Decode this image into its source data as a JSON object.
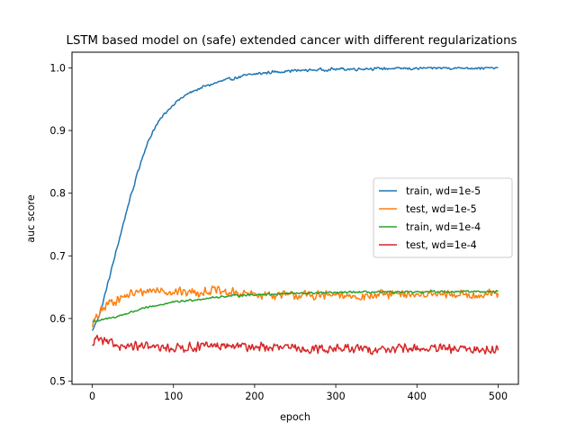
{
  "chart_data": {
    "type": "line",
    "title": "LSTM based model on (safe) extended cancer with different regularizations",
    "xlabel": "epoch",
    "ylabel": "auc score",
    "xlim": [
      -25,
      525
    ],
    "ylim": [
      0.495,
      1.025
    ],
    "xticks": [
      0,
      100,
      200,
      300,
      400,
      500
    ],
    "yticks": [
      0.5,
      0.6,
      0.7,
      0.8,
      0.9,
      1.0
    ],
    "grid": false,
    "legend_position": "center-right",
    "series": [
      {
        "name": "train, wd=1e-5",
        "color": "#1f77b4",
        "x": [
          0,
          5,
          10,
          15,
          20,
          25,
          30,
          35,
          40,
          45,
          50,
          55,
          60,
          65,
          70,
          75,
          80,
          85,
          90,
          95,
          100,
          110,
          120,
          130,
          140,
          150,
          160,
          170,
          180,
          190,
          200,
          220,
          240,
          260,
          280,
          300,
          320,
          340,
          360,
          380,
          400,
          420,
          440,
          460,
          480,
          500
        ],
        "y": [
          0.58,
          0.595,
          0.61,
          0.635,
          0.66,
          0.685,
          0.71,
          0.735,
          0.76,
          0.785,
          0.805,
          0.83,
          0.85,
          0.87,
          0.885,
          0.9,
          0.91,
          0.92,
          0.928,
          0.935,
          0.942,
          0.952,
          0.96,
          0.966,
          0.971,
          0.975,
          0.979,
          0.982,
          0.985,
          0.988,
          0.99,
          0.993,
          0.995,
          0.996,
          0.997,
          0.998,
          0.998,
          0.999,
          0.999,
          0.999,
          0.999,
          1.0,
          1.0,
          1.0,
          1.0,
          1.0
        ],
        "noise": 0.003
      },
      {
        "name": "test, wd=1e-5",
        "color": "#ff7f0e",
        "x": [
          0,
          10,
          20,
          30,
          40,
          50,
          60,
          70,
          80,
          100,
          120,
          140,
          150,
          160,
          180,
          200,
          220,
          240,
          260,
          280,
          300,
          320,
          340,
          360,
          380,
          400,
          420,
          440,
          460,
          480,
          500
        ],
        "y": [
          0.59,
          0.61,
          0.625,
          0.63,
          0.635,
          0.64,
          0.642,
          0.645,
          0.645,
          0.643,
          0.642,
          0.643,
          0.645,
          0.642,
          0.64,
          0.638,
          0.638,
          0.637,
          0.637,
          0.637,
          0.636,
          0.636,
          0.636,
          0.638,
          0.638,
          0.639,
          0.638,
          0.638,
          0.638,
          0.638,
          0.64
        ],
        "noise": 0.009
      },
      {
        "name": "train, wd=1e-4",
        "color": "#2ca02c",
        "x": [
          0,
          10,
          20,
          30,
          40,
          50,
          60,
          80,
          100,
          120,
          140,
          160,
          180,
          200,
          220,
          240,
          260,
          280,
          300,
          320,
          340,
          360,
          380,
          400,
          420,
          440,
          460,
          480,
          500
        ],
        "y": [
          0.595,
          0.597,
          0.6,
          0.603,
          0.607,
          0.611,
          0.615,
          0.621,
          0.626,
          0.629,
          0.632,
          0.635,
          0.637,
          0.638,
          0.639,
          0.64,
          0.64,
          0.641,
          0.641,
          0.642,
          0.642,
          0.642,
          0.642,
          0.642,
          0.643,
          0.643,
          0.643,
          0.643,
          0.643
        ],
        "noise": 0.002
      },
      {
        "name": "test, wd=1e-4",
        "color": "#d62728",
        "x": [
          0,
          5,
          10,
          20,
          50,
          100,
          150,
          200,
          250,
          300,
          350,
          400,
          450,
          500
        ],
        "y": [
          0.555,
          0.57,
          0.565,
          0.56,
          0.555,
          0.553,
          0.556,
          0.555,
          0.552,
          0.552,
          0.551,
          0.552,
          0.551,
          0.55
        ],
        "noise": 0.009
      }
    ]
  }
}
